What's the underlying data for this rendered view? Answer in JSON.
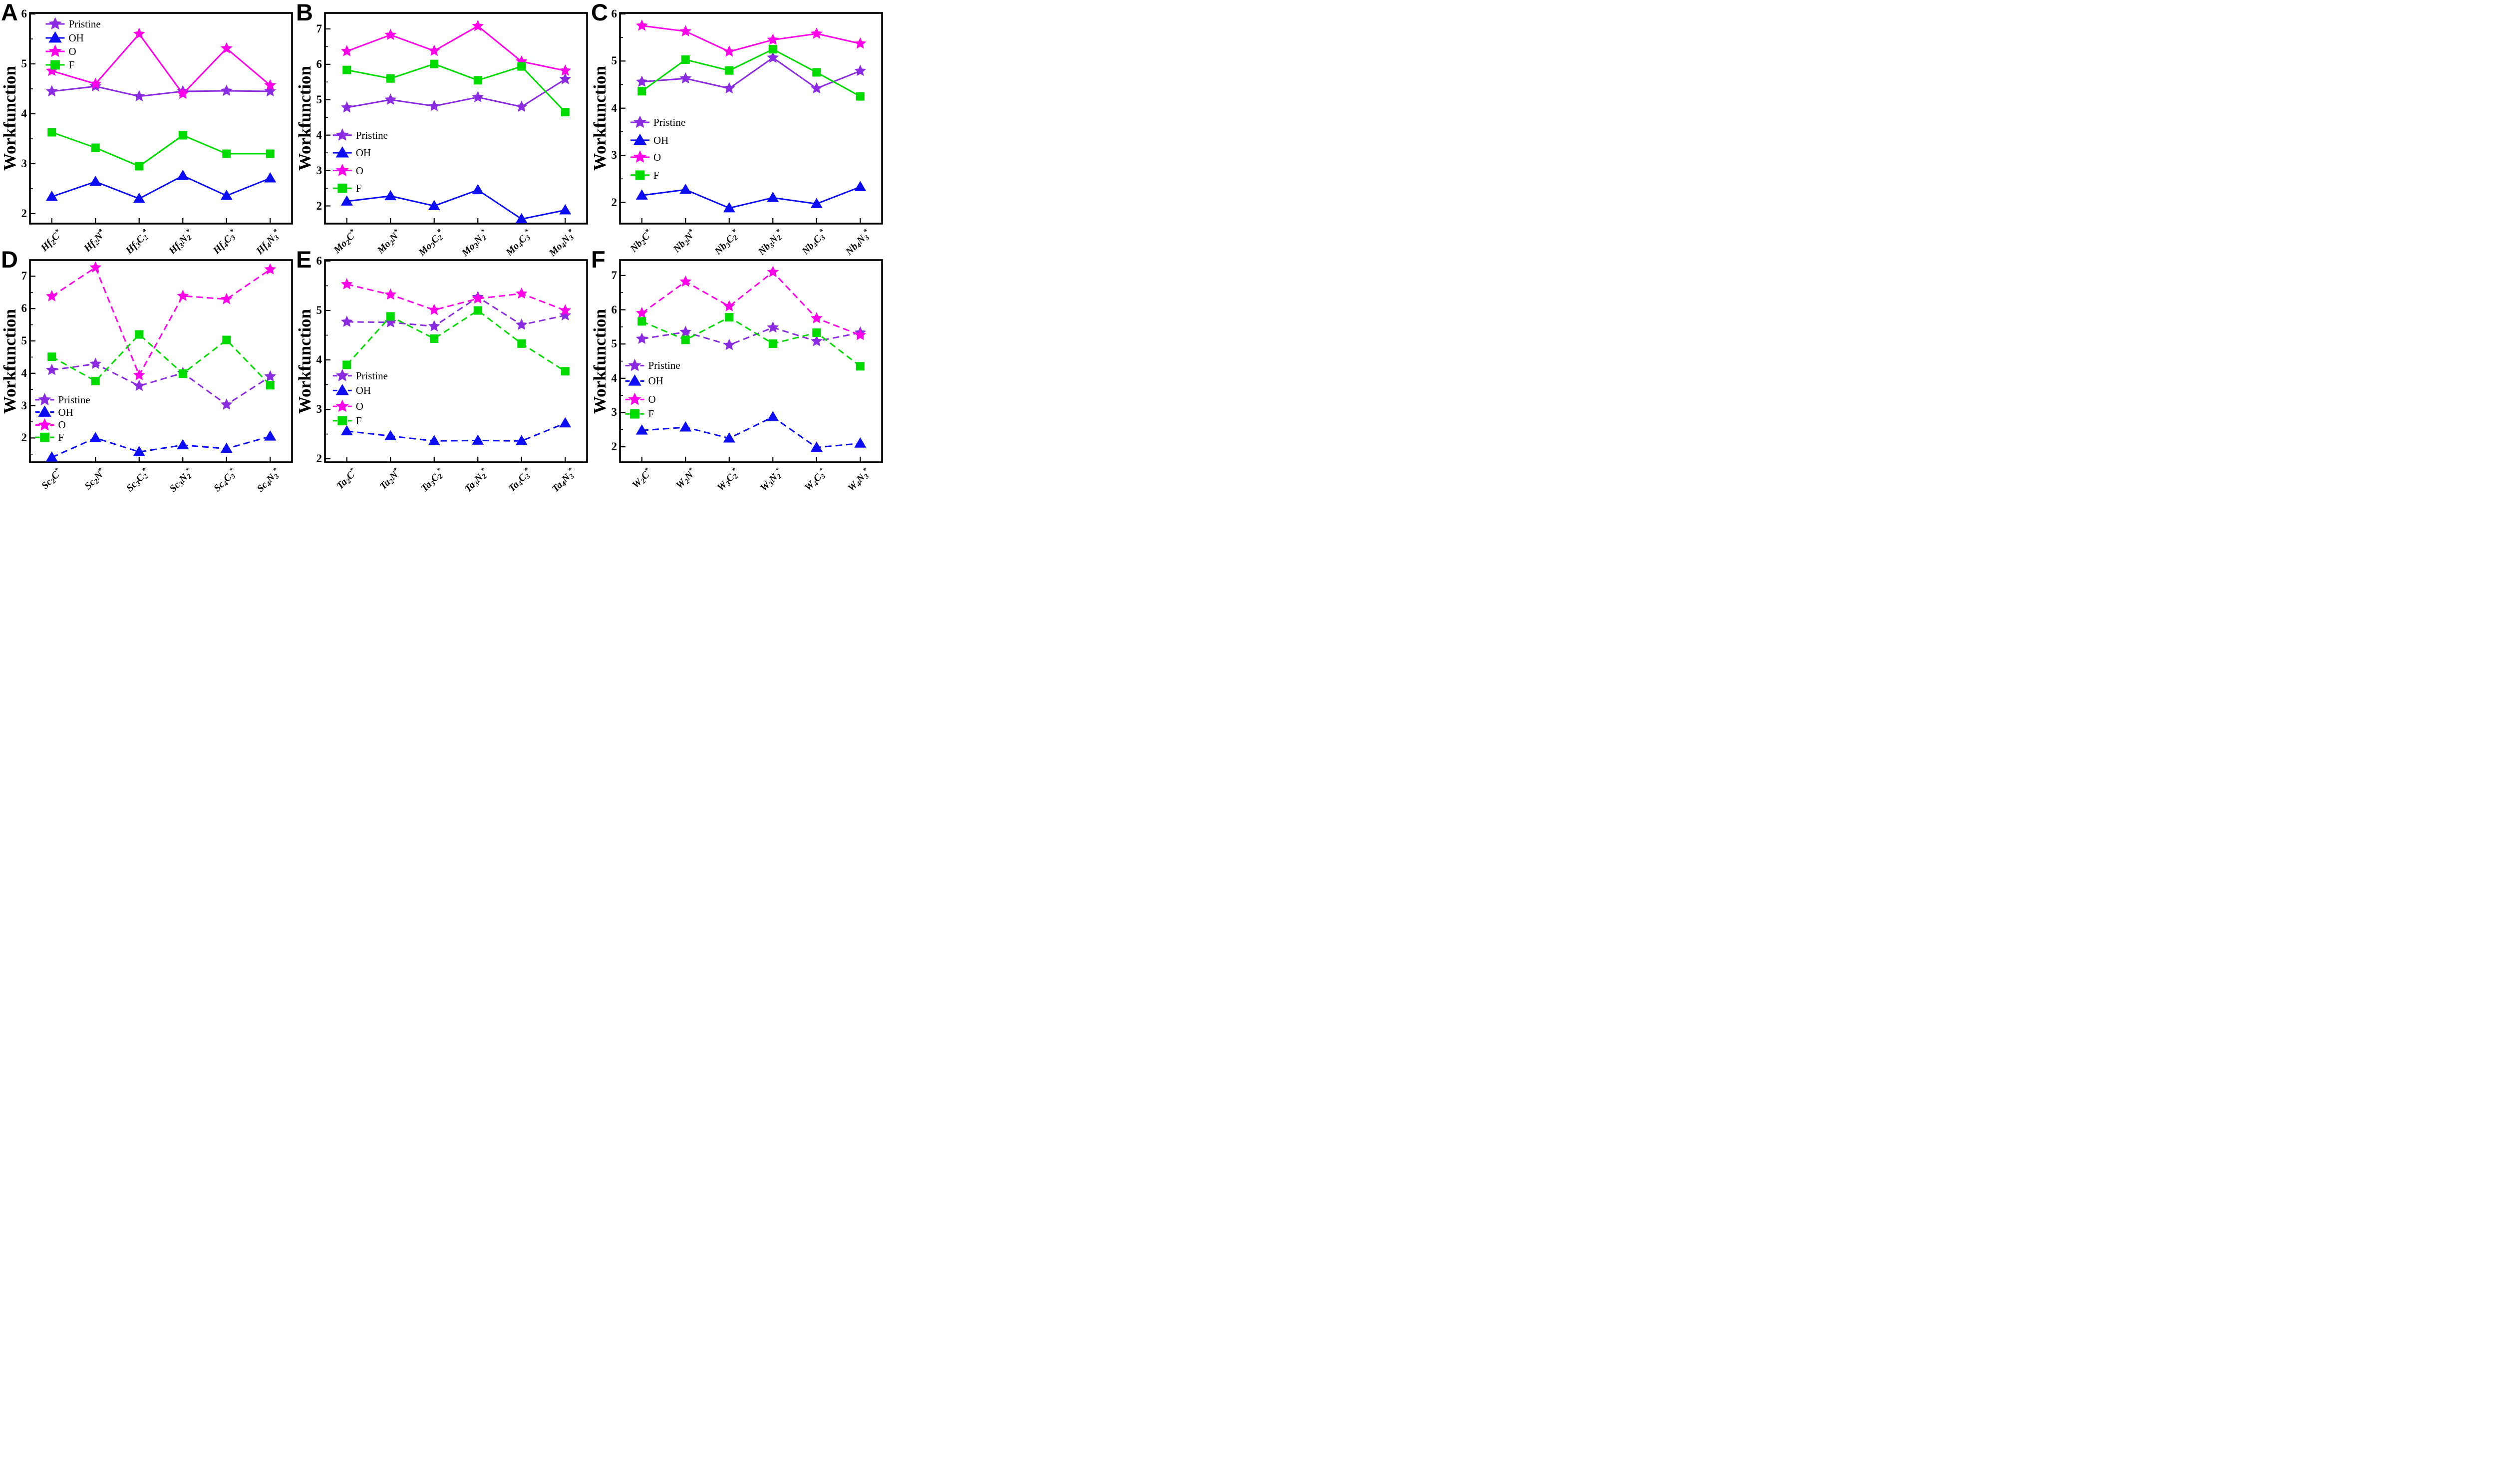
{
  "figure": {
    "ylabel": "Workfunction",
    "legend_labels": [
      "Pristine",
      "OH",
      "O",
      "F"
    ],
    "colors": {
      "pristine": "#8A2BE2",
      "oh": "#0D0DF2",
      "o": "#FF00E8",
      "f": "#00DC00",
      "axis": "#000000",
      "background": "#FFFFFF"
    }
  },
  "chart_data": [
    {
      "type": "line",
      "panel": "A",
      "line_style": "solid",
      "ylabel": "Workfunction",
      "ylim": [
        1.8,
        6.02
      ],
      "yticks": [
        2,
        3,
        4,
        5,
        6
      ],
      "grid": false,
      "legend_position": "upper-left-inside",
      "categories": [
        "Hf2C*",
        "Hf2N*",
        "Hf3C2*",
        "Hf3N2*",
        "Hf4C3*",
        "Hf4N3*"
      ],
      "series": [
        {
          "name": "Pristine",
          "marker": "star",
          "color_key": "pristine",
          "values": [
            4.45,
            4.55,
            4.35,
            4.45,
            4.46,
            4.45
          ]
        },
        {
          "name": "OH",
          "marker": "triangle",
          "color_key": "oh",
          "values": [
            2.34,
            2.64,
            2.3,
            2.76,
            2.36,
            2.71
          ]
        },
        {
          "name": "O",
          "marker": "star",
          "color_key": "o",
          "values": [
            4.86,
            4.6,
            5.6,
            4.4,
            5.31,
            4.57
          ]
        },
        {
          "name": "F",
          "marker": "square",
          "color_key": "f",
          "values": [
            3.63,
            3.32,
            2.95,
            3.57,
            3.2,
            3.2
          ]
        }
      ],
      "legend": {
        "x": 0.06,
        "y_values": [
          5.8,
          5.52,
          5.25,
          4.98
        ]
      }
    },
    {
      "type": "line",
      "panel": "B",
      "line_style": "solid",
      "ylabel": "Workfunction",
      "ylim": [
        1.5,
        7.45
      ],
      "yticks": [
        2,
        3,
        4,
        5,
        6,
        7
      ],
      "grid": false,
      "legend_position": "middle-left-inside",
      "categories": [
        "Mo2C*",
        "Mo2N*",
        "Mo3C2*",
        "Mo3N2*",
        "Mo4C3*",
        "Mo4N3*"
      ],
      "series": [
        {
          "name": "Pristine",
          "marker": "star",
          "color_key": "pristine",
          "values": [
            4.78,
            5.0,
            4.82,
            5.07,
            4.8,
            5.58
          ]
        },
        {
          "name": "OH",
          "marker": "triangle",
          "color_key": "oh",
          "values": [
            2.13,
            2.28,
            2.0,
            2.45,
            1.63,
            1.88
          ]
        },
        {
          "name": "O",
          "marker": "star",
          "color_key": "o",
          "values": [
            6.37,
            6.83,
            6.38,
            7.08,
            6.08,
            5.82
          ]
        },
        {
          "name": "F",
          "marker": "square",
          "color_key": "f",
          "values": [
            5.84,
            5.6,
            6.01,
            5.55,
            5.94,
            4.65
          ]
        }
      ],
      "legend": {
        "x": 0.03,
        "y_values": [
          4.0,
          3.5,
          3.0,
          2.5
        ]
      }
    },
    {
      "type": "line",
      "panel": "C",
      "line_style": "solid",
      "ylabel": "Workfunction",
      "ylim": [
        1.55,
        6.02
      ],
      "yticks": [
        2,
        3,
        4,
        5,
        6
      ],
      "grid": false,
      "legend_position": "middle-left-inside",
      "categories": [
        "Nb2C*",
        "Nb2N*",
        "Nb3C2*",
        "Nb3N2*",
        "Nb4C3*",
        "Nb4N3*"
      ],
      "series": [
        {
          "name": "Pristine",
          "marker": "star",
          "color_key": "pristine",
          "values": [
            4.56,
            4.63,
            4.42,
            5.07,
            4.42,
            4.79
          ]
        },
        {
          "name": "OH",
          "marker": "triangle",
          "color_key": "oh",
          "values": [
            2.15,
            2.27,
            1.88,
            2.1,
            1.97,
            2.33
          ]
        },
        {
          "name": "O",
          "marker": "star",
          "color_key": "o",
          "values": [
            5.75,
            5.63,
            5.2,
            5.45,
            5.58,
            5.37
          ]
        },
        {
          "name": "F",
          "marker": "square",
          "color_key": "f",
          "values": [
            4.36,
            5.03,
            4.8,
            5.25,
            4.76,
            4.25
          ]
        }
      ],
      "legend": {
        "x": 0.04,
        "y_values": [
          3.7,
          3.32,
          2.96,
          2.58
        ]
      }
    },
    {
      "type": "line",
      "panel": "D",
      "line_style": "dashed",
      "ylabel": "Workfunction",
      "ylim": [
        1.25,
        7.5
      ],
      "yticks": [
        2,
        3,
        4,
        5,
        6,
        7
      ],
      "grid": false,
      "legend_position": "middle-left-inside",
      "categories": [
        "Sc2C*",
        "Sc2N*",
        "Sc3C2*",
        "Sc3N2*",
        "Sc4C3*",
        "Sc4N3*"
      ],
      "series": [
        {
          "name": "Pristine",
          "marker": "star",
          "color_key": "pristine",
          "values": [
            4.1,
            4.29,
            3.61,
            4.01,
            3.03,
            3.9
          ]
        },
        {
          "name": "OH",
          "marker": "triangle",
          "color_key": "oh",
          "values": [
            1.4,
            2.0,
            1.57,
            1.78,
            1.67,
            2.05
          ]
        },
        {
          "name": "O",
          "marker": "star",
          "color_key": "o",
          "values": [
            6.38,
            7.27,
            3.94,
            6.39,
            6.29,
            7.21
          ]
        },
        {
          "name": "F",
          "marker": "square",
          "color_key": "f",
          "values": [
            4.51,
            3.76,
            5.2,
            3.99,
            5.03,
            3.63
          ]
        }
      ],
      "legend": {
        "x": 0.02,
        "y_values": [
          3.18,
          2.8,
          2.4,
          2.02
        ]
      }
    },
    {
      "type": "line",
      "panel": "E",
      "line_style": "dashed",
      "ylabel": "Workfunction",
      "ylim": [
        1.93,
        6.02
      ],
      "yticks": [
        2,
        3,
        4,
        5,
        6
      ],
      "grid": false,
      "legend_position": "middle-left-inside",
      "categories": [
        "Ta2C*",
        "Ta2N*",
        "Ta3C2*",
        "Ta3N2*",
        "Ta4C3*",
        "Ta4N3*"
      ],
      "series": [
        {
          "name": "Pristine",
          "marker": "star",
          "color_key": "pristine",
          "values": [
            4.77,
            4.76,
            4.68,
            5.27,
            4.71,
            4.9
          ]
        },
        {
          "name": "OH",
          "marker": "triangle",
          "color_key": "oh",
          "values": [
            2.56,
            2.46,
            2.36,
            2.37,
            2.36,
            2.72
          ]
        },
        {
          "name": "O",
          "marker": "star",
          "color_key": "o",
          "values": [
            5.53,
            5.32,
            5.01,
            5.24,
            5.34,
            5.0
          ]
        },
        {
          "name": "F",
          "marker": "square",
          "color_key": "f",
          "values": [
            3.9,
            4.88,
            4.43,
            5.0,
            4.33,
            3.77
          ]
        }
      ],
      "legend": {
        "x": 0.03,
        "y_values": [
          3.68,
          3.38,
          3.06,
          2.77
        ]
      }
    },
    {
      "type": "line",
      "panel": "F",
      "line_style": "dashed",
      "ylabel": "Workfunction",
      "ylim": [
        1.55,
        7.45
      ],
      "yticks": [
        2,
        3,
        4,
        5,
        6,
        7
      ],
      "grid": false,
      "legend_position": "middle-left-inside",
      "categories": [
        "W2C*",
        "W2N*",
        "W3C2*",
        "W3N2*",
        "W4C3*",
        "W4N3*"
      ],
      "series": [
        {
          "name": "Pristine",
          "marker": "star",
          "color_key": "pristine",
          "values": [
            5.15,
            5.35,
            4.97,
            5.48,
            5.08,
            5.33
          ]
        },
        {
          "name": "OH",
          "marker": "triangle",
          "color_key": "oh",
          "values": [
            2.48,
            2.57,
            2.25,
            2.87,
            1.98,
            2.1
          ]
        },
        {
          "name": "O",
          "marker": "star",
          "color_key": "o",
          "values": [
            5.9,
            6.82,
            6.1,
            7.1,
            5.75,
            5.26
          ]
        },
        {
          "name": "F",
          "marker": "square",
          "color_key": "f",
          "values": [
            5.66,
            5.12,
            5.78,
            5.01,
            5.33,
            4.35
          ]
        }
      ],
      "legend": {
        "x": 0.02,
        "y_values": [
          4.37,
          3.92,
          3.38,
          2.96
        ]
      }
    }
  ]
}
